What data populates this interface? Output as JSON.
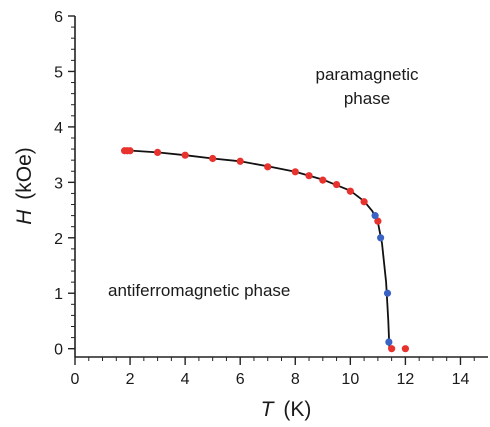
{
  "chart_data": {
    "type": "scatter",
    "xlabel_symbol": "T",
    "xlabel_unit": "(K)",
    "ylabel_symbol": "H",
    "ylabel_unit": "(kOe)",
    "xlim": [
      0,
      15
    ],
    "ylim": [
      -0.15,
      6
    ],
    "x_ticks": [
      "0",
      "2",
      "4",
      "6",
      "8",
      "10",
      "12",
      "14"
    ],
    "y_ticks": [
      "0",
      "1",
      "2",
      "3",
      "4",
      "5",
      "6"
    ],
    "grid": false,
    "annotations": {
      "paramagnetic_line1": "paramagnetic",
      "paramagnetic_line2": "phase",
      "antiferromagnetic": "antiferromagnetic phase"
    },
    "colors": {
      "red_series": "#e8322e",
      "blue_series": "#3a63c4",
      "curve": "#111111",
      "axis": "#222222"
    },
    "series": [
      {
        "color_key": "red_series",
        "points": [
          {
            "x": 1.8,
            "y": 3.57
          },
          {
            "x": 1.9,
            "y": 3.57
          },
          {
            "x": 2.0,
            "y": 3.57
          },
          {
            "x": 3.0,
            "y": 3.54
          },
          {
            "x": 4.0,
            "y": 3.49
          },
          {
            "x": 5.0,
            "y": 3.43
          },
          {
            "x": 6.0,
            "y": 3.38
          },
          {
            "x": 7.0,
            "y": 3.28
          },
          {
            "x": 8.0,
            "y": 3.19
          },
          {
            "x": 8.5,
            "y": 3.12
          },
          {
            "x": 9.0,
            "y": 3.04
          },
          {
            "x": 9.5,
            "y": 2.96
          },
          {
            "x": 10.0,
            "y": 2.84
          },
          {
            "x": 10.5,
            "y": 2.65
          },
          {
            "x": 11.0,
            "y": 2.3
          },
          {
            "x": 11.5,
            "y": 0.0
          },
          {
            "x": 12.0,
            "y": 0.0
          }
        ]
      },
      {
        "color_key": "blue_series",
        "points": [
          {
            "x": 10.9,
            "y": 2.4
          },
          {
            "x": 11.1,
            "y": 2.0
          },
          {
            "x": 11.35,
            "y": 1.0
          },
          {
            "x": 11.4,
            "y": 0.12
          }
        ]
      }
    ],
    "curve": [
      {
        "x": 1.8,
        "y": 3.58
      },
      {
        "x": 3.0,
        "y": 3.54
      },
      {
        "x": 4.0,
        "y": 3.49
      },
      {
        "x": 5.0,
        "y": 3.43
      },
      {
        "x": 6.0,
        "y": 3.38
      },
      {
        "x": 7.0,
        "y": 3.29
      },
      {
        "x": 8.0,
        "y": 3.19
      },
      {
        "x": 9.0,
        "y": 3.05
      },
      {
        "x": 10.0,
        "y": 2.85
      },
      {
        "x": 10.5,
        "y": 2.66
      },
      {
        "x": 10.8,
        "y": 2.48
      },
      {
        "x": 11.0,
        "y": 2.28
      },
      {
        "x": 11.15,
        "y": 1.9
      },
      {
        "x": 11.3,
        "y": 1.2
      },
      {
        "x": 11.38,
        "y": 0.5
      },
      {
        "x": 11.42,
        "y": 0.0
      }
    ]
  }
}
